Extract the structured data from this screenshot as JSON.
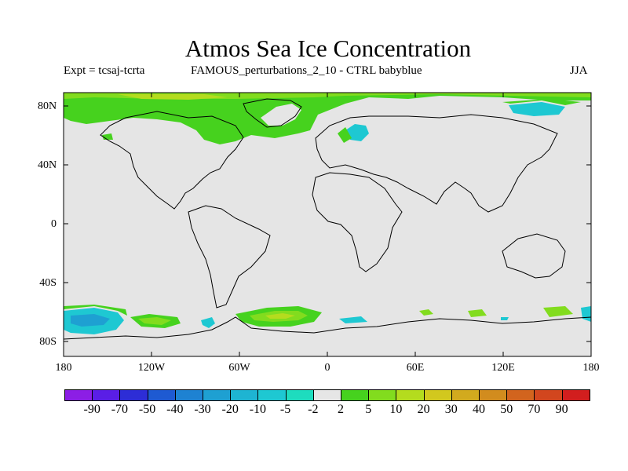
{
  "title": "Atmos Sea Ice Concentration",
  "subtitle_left": "Expt = tcsaj-tcrta",
  "subtitle_center": "FAMOUS_perturbations_2_10 - CTRL babyblue",
  "subtitle_right": "JJA",
  "map": {
    "projection": "cylindrical equidistant",
    "background_color": "#e5e5e5",
    "lat_range": [
      -90,
      90
    ],
    "lon_range": [
      -180,
      180
    ],
    "lat_ticks": [
      "80N",
      "40N",
      "0",
      "40S",
      "80S"
    ],
    "lon_ticks": [
      "180",
      "120W",
      "60W",
      "0",
      "60E",
      "120E",
      "180"
    ]
  },
  "colorbar": {
    "labels": [
      "-90",
      "-70",
      "-50",
      "-40",
      "-30",
      "-20",
      "-10",
      "-5",
      "-2",
      "2",
      "5",
      "10",
      "20",
      "30",
      "40",
      "50",
      "70",
      "90"
    ],
    "colors": [
      "#8c1ee5",
      "#5a1ee6",
      "#2d2dd6",
      "#1e5ad2",
      "#1e82d2",
      "#1ea0d2",
      "#1eb4d2",
      "#1ec8d2",
      "#1edcbe",
      "#e6e6e6",
      "#46d21e",
      "#82dc1e",
      "#b4dc1e",
      "#d2c81e",
      "#d2aa1e",
      "#d28c1e",
      "#d2641e",
      "#d2461e",
      "#d21e1e"
    ]
  }
}
